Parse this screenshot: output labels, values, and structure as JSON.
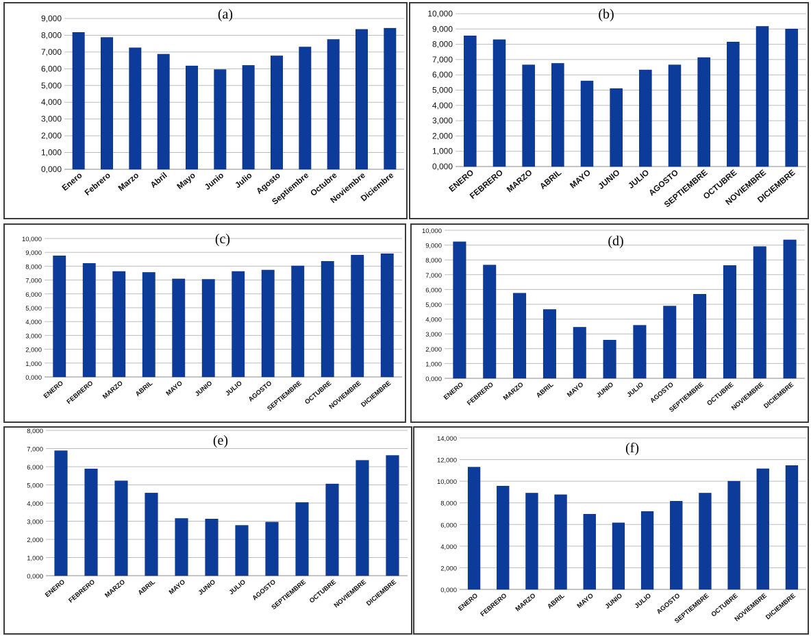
{
  "colors": {
    "bar": "#0d3b9a",
    "grid": "#bdbdbd",
    "frame": "#3a3a3a"
  },
  "chart_data": [
    {
      "panel": "(a)",
      "type": "bar",
      "categories": [
        "Enero",
        "Febrero",
        "Marzo",
        "Abril",
        "Mayo",
        "Junio",
        "Julio",
        "Agosto",
        "Septiembre",
        "Octubre",
        "Noviembre",
        "Diciembre"
      ],
      "values": [
        8.17,
        7.87,
        7.25,
        6.87,
        6.17,
        5.95,
        6.2,
        6.77,
        7.3,
        7.75,
        8.35,
        8.42
      ],
      "ylim": [
        0,
        9
      ],
      "yticks": [
        "0,000",
        "1,000",
        "2,000",
        "3,000",
        "4,000",
        "5,000",
        "6,000",
        "7,000",
        "8,000",
        "9,000"
      ],
      "grid": true
    },
    {
      "panel": "(b)",
      "type": "bar",
      "categories": [
        "ENERO",
        "FEBRERO",
        "MARZO",
        "ABRIL",
        "MAYO",
        "JUNIO",
        "JULIO",
        "AGOSTO",
        "SEPTIEMBRE",
        "OCTUBRE",
        "NOVIEMBRE",
        "DICIEMBRE"
      ],
      "values": [
        8.55,
        8.3,
        6.65,
        6.75,
        5.6,
        5.1,
        6.32,
        6.65,
        7.13,
        8.15,
        9.17,
        9.0
      ],
      "ylim": [
        0,
        10
      ],
      "yticks": [
        "0,000",
        "1,000",
        "2,000",
        "3,000",
        "4,000",
        "5,000",
        "6,000",
        "7,000",
        "8,000",
        "9,000",
        "10,000"
      ],
      "grid": true
    },
    {
      "panel": "(c)",
      "type": "bar",
      "categories": [
        "ENERO",
        "FEBRERO",
        "MARZO",
        "ABRIL",
        "MAYO",
        "JUNIO",
        "JULIO",
        "AGOSTO",
        "SEPTIEMBRE",
        "OCTUBRE",
        "NOVIEMBRE",
        "DICIEMBRE"
      ],
      "values": [
        8.75,
        8.2,
        7.62,
        7.55,
        7.08,
        7.05,
        7.62,
        7.72,
        8.02,
        8.35,
        8.8,
        8.9
      ],
      "ylim": [
        0,
        10
      ],
      "yticks": [
        "0,000",
        "1,000",
        "2,000",
        "3,000",
        "4,000",
        "5,000",
        "6,000",
        "7,000",
        "8,000",
        "9,000",
        "10,000"
      ],
      "grid": true
    },
    {
      "panel": "(d)",
      "type": "bar",
      "categories": [
        "ENERO",
        "FEBRERO",
        "MARZO",
        "ABRIL",
        "MAYO",
        "JUNIO",
        "JULIO",
        "AGOSTO",
        "SEPTIEMBRE",
        "OCTUBRE",
        "NOVIEMBRE",
        "DICIEMBRE"
      ],
      "values": [
        9.22,
        7.65,
        5.75,
        4.65,
        3.45,
        2.58,
        3.58,
        4.88,
        5.68,
        7.62,
        8.9,
        9.35
      ],
      "ylim": [
        0,
        10
      ],
      "yticks": [
        "0,000",
        "1,000",
        "2,000",
        "3,000",
        "4,000",
        "5,000",
        "6,000",
        "7,000",
        "8,000",
        "9,000",
        "10,000"
      ],
      "grid": true
    },
    {
      "panel": "(e)",
      "type": "bar",
      "categories": [
        "ENERO",
        "FEBRERO",
        "MARZO",
        "ABRIL",
        "MAYO",
        "JUNIO",
        "JULIO",
        "AGOSTO",
        "SEPTIEMBRE",
        "OCTUBRE",
        "NOVIEMBRE",
        "DICIEMBRE"
      ],
      "values": [
        6.88,
        5.88,
        5.22,
        4.55,
        3.15,
        3.12,
        2.77,
        2.95,
        4.03,
        5.05,
        6.35,
        6.62
      ],
      "ylim": [
        0,
        8
      ],
      "yticks": [
        "0,000",
        "1,000",
        "2,000",
        "3,000",
        "4,000",
        "5,000",
        "6,000",
        "7,000",
        "8,000"
      ],
      "grid": true
    },
    {
      "panel": "(f)",
      "type": "bar",
      "categories": [
        "ENERO",
        "FEBRERO",
        "MARZO",
        "ABRIL",
        "MAYO",
        "JUNIO",
        "JULIO",
        "AGOSTO",
        "SEPTIEMBRE",
        "OCTUBRE",
        "NOVIEMBRE",
        "DICIEMBRE"
      ],
      "values": [
        11.3,
        9.55,
        8.9,
        8.75,
        6.95,
        6.15,
        7.2,
        8.15,
        8.9,
        10.0,
        11.15,
        11.45
      ],
      "ylim": [
        0,
        14
      ],
      "yticks": [
        "0,000",
        "2,000",
        "4,000",
        "6,000",
        "8,000",
        "10,000",
        "12,000",
        "14,000"
      ],
      "grid": true
    }
  ]
}
